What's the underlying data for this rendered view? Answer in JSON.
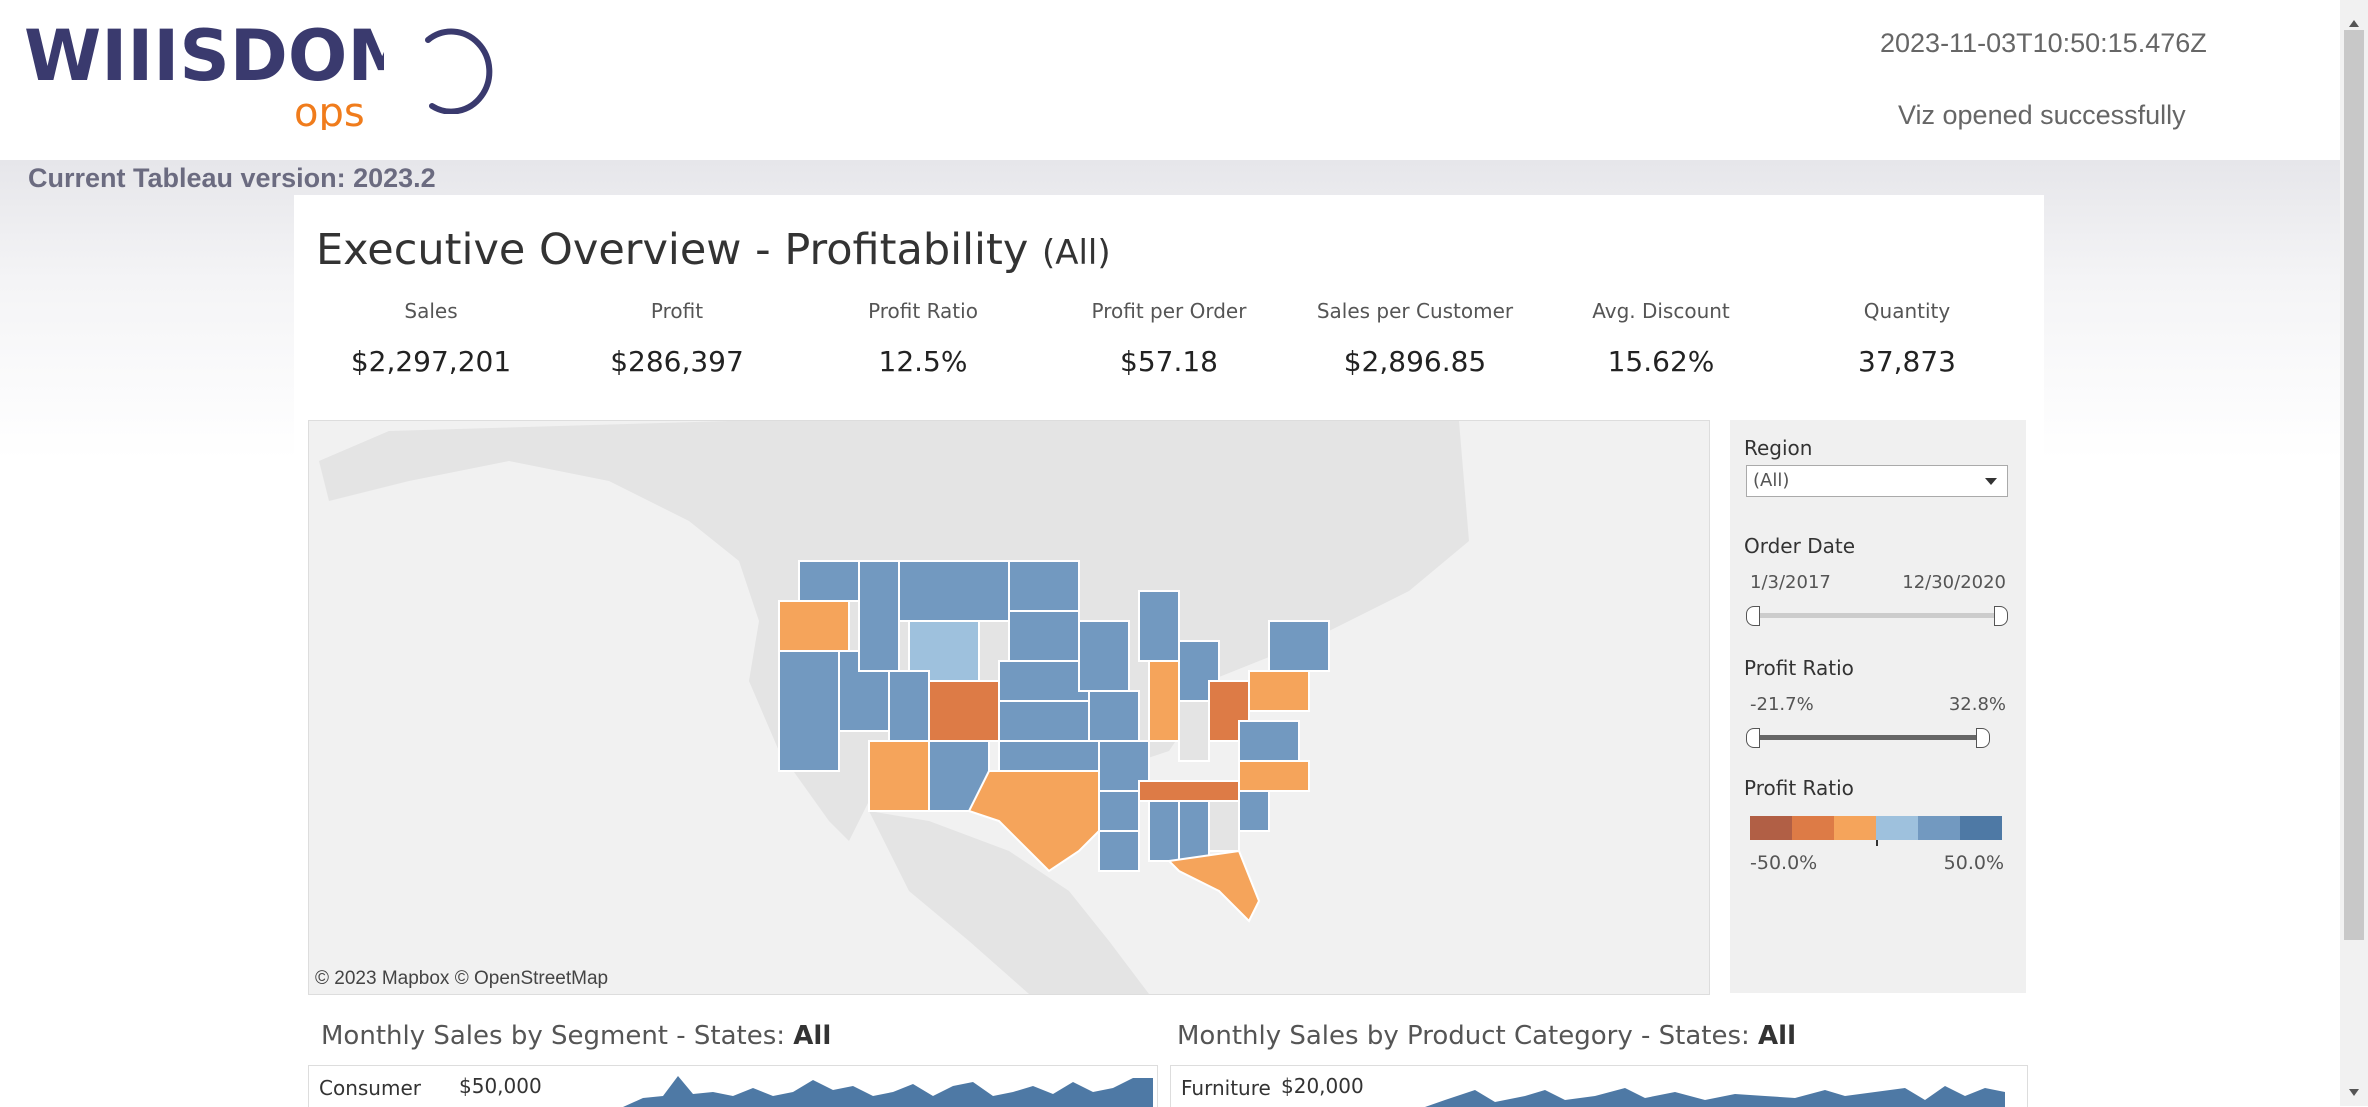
{
  "header": {
    "logo_text": "WIIISDOM",
    "logo_sub": "ops",
    "timestamp": "2023-11-03T10:50:15.476Z",
    "status": "Viz opened successfully",
    "version": "Current Tableau version: 2023.2"
  },
  "dashboard": {
    "title": "Executive Overview - Profitability",
    "title_suffix": "(All)",
    "kpis": [
      {
        "label": "Sales",
        "value": "$2,297,201"
      },
      {
        "label": "Profit",
        "value": "$286,397"
      },
      {
        "label": "Profit Ratio",
        "value": "12.5%"
      },
      {
        "label": "Profit per Order",
        "value": "$57.18"
      },
      {
        "label": "Sales per Customer",
        "value": "$2,896.85"
      },
      {
        "label": "Avg. Discount",
        "value": "15.62%"
      },
      {
        "label": "Quantity",
        "value": "37,873"
      }
    ],
    "map_attribution": "© 2023 Mapbox  © OpenStreetMap"
  },
  "filters": {
    "region_label": "Region",
    "region_value": "(All)",
    "order_date_label": "Order Date",
    "order_date_min": "1/3/2017",
    "order_date_max": "12/30/2020",
    "profit_ratio_label": "Profit Ratio",
    "profit_ratio_min": "-21.7%",
    "profit_ratio_max": "32.8%",
    "legend_label": "Profit Ratio",
    "legend_min": "-50.0%",
    "legend_max": "50.0%",
    "legend_colors": [
      "#b15f45",
      "#dd7b46",
      "#f5a45b",
      "#9ec1dd",
      "#7299c0",
      "#4e79a5"
    ]
  },
  "panels": {
    "segment_title": "Monthly Sales by Segment - States:",
    "segment_filter": "All",
    "segment_row": "Consumer",
    "segment_axis": "$50,000",
    "category_title": "Monthly Sales by Product Category - States:",
    "category_filter": "All",
    "category_row": "Furniture",
    "category_axis": "$20,000"
  },
  "colors": {
    "map_blue": "#7299c0",
    "map_light_blue": "#9ec1dd",
    "map_orange": "#f5a45b",
    "map_dark_orange": "#dd7b46",
    "logo_navy": "#3a3a6e",
    "logo_orange": "#f07c1c"
  }
}
